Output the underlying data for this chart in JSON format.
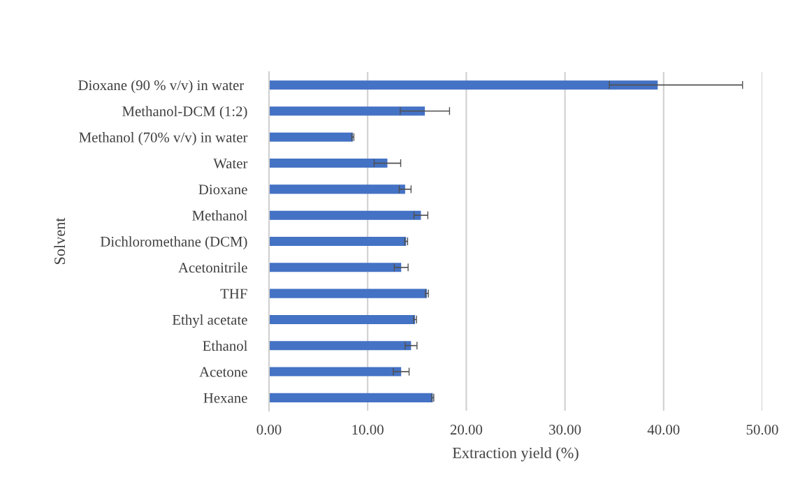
{
  "chart_data": {
    "type": "bar",
    "orientation": "horizontal",
    "xlabel": "Extraction yield (%)",
    "ylabel": "Solvent",
    "categories": [
      "Dioxane (90 % v/v) in water ",
      "Methanol-DCM (1:2)",
      "Methanol (70% v/v) in water",
      "Water",
      "Dioxane",
      "Methanol",
      "Dichloromethane (DCM)",
      "Acetonitrile",
      "THF",
      "Ethyl acetate",
      "Ethanol",
      "Acetone",
      "Hexane"
    ],
    "values": [
      39.4,
      15.8,
      8.5,
      12.0,
      13.8,
      15.4,
      13.9,
      13.4,
      16.0,
      14.8,
      14.4,
      13.4,
      16.6
    ],
    "errors": [
      [
        34.5,
        48.0
      ],
      2.5,
      0.1,
      1.35,
      0.6,
      0.7,
      0.15,
      0.7,
      0.15,
      0.15,
      0.6,
      0.8,
      0.1
    ],
    "color": "#4472c4",
    "xlim": [
      0,
      50
    ],
    "xticks": [
      {
        "value": 0,
        "label": "0.00"
      },
      {
        "value": 10,
        "label": "10.00"
      },
      {
        "value": 20,
        "label": "20.00"
      },
      {
        "value": 30,
        "label": "30.00"
      },
      {
        "value": 40,
        "label": "40.00"
      },
      {
        "value": 50,
        "label": "50.00"
      }
    ],
    "grid": "x"
  }
}
